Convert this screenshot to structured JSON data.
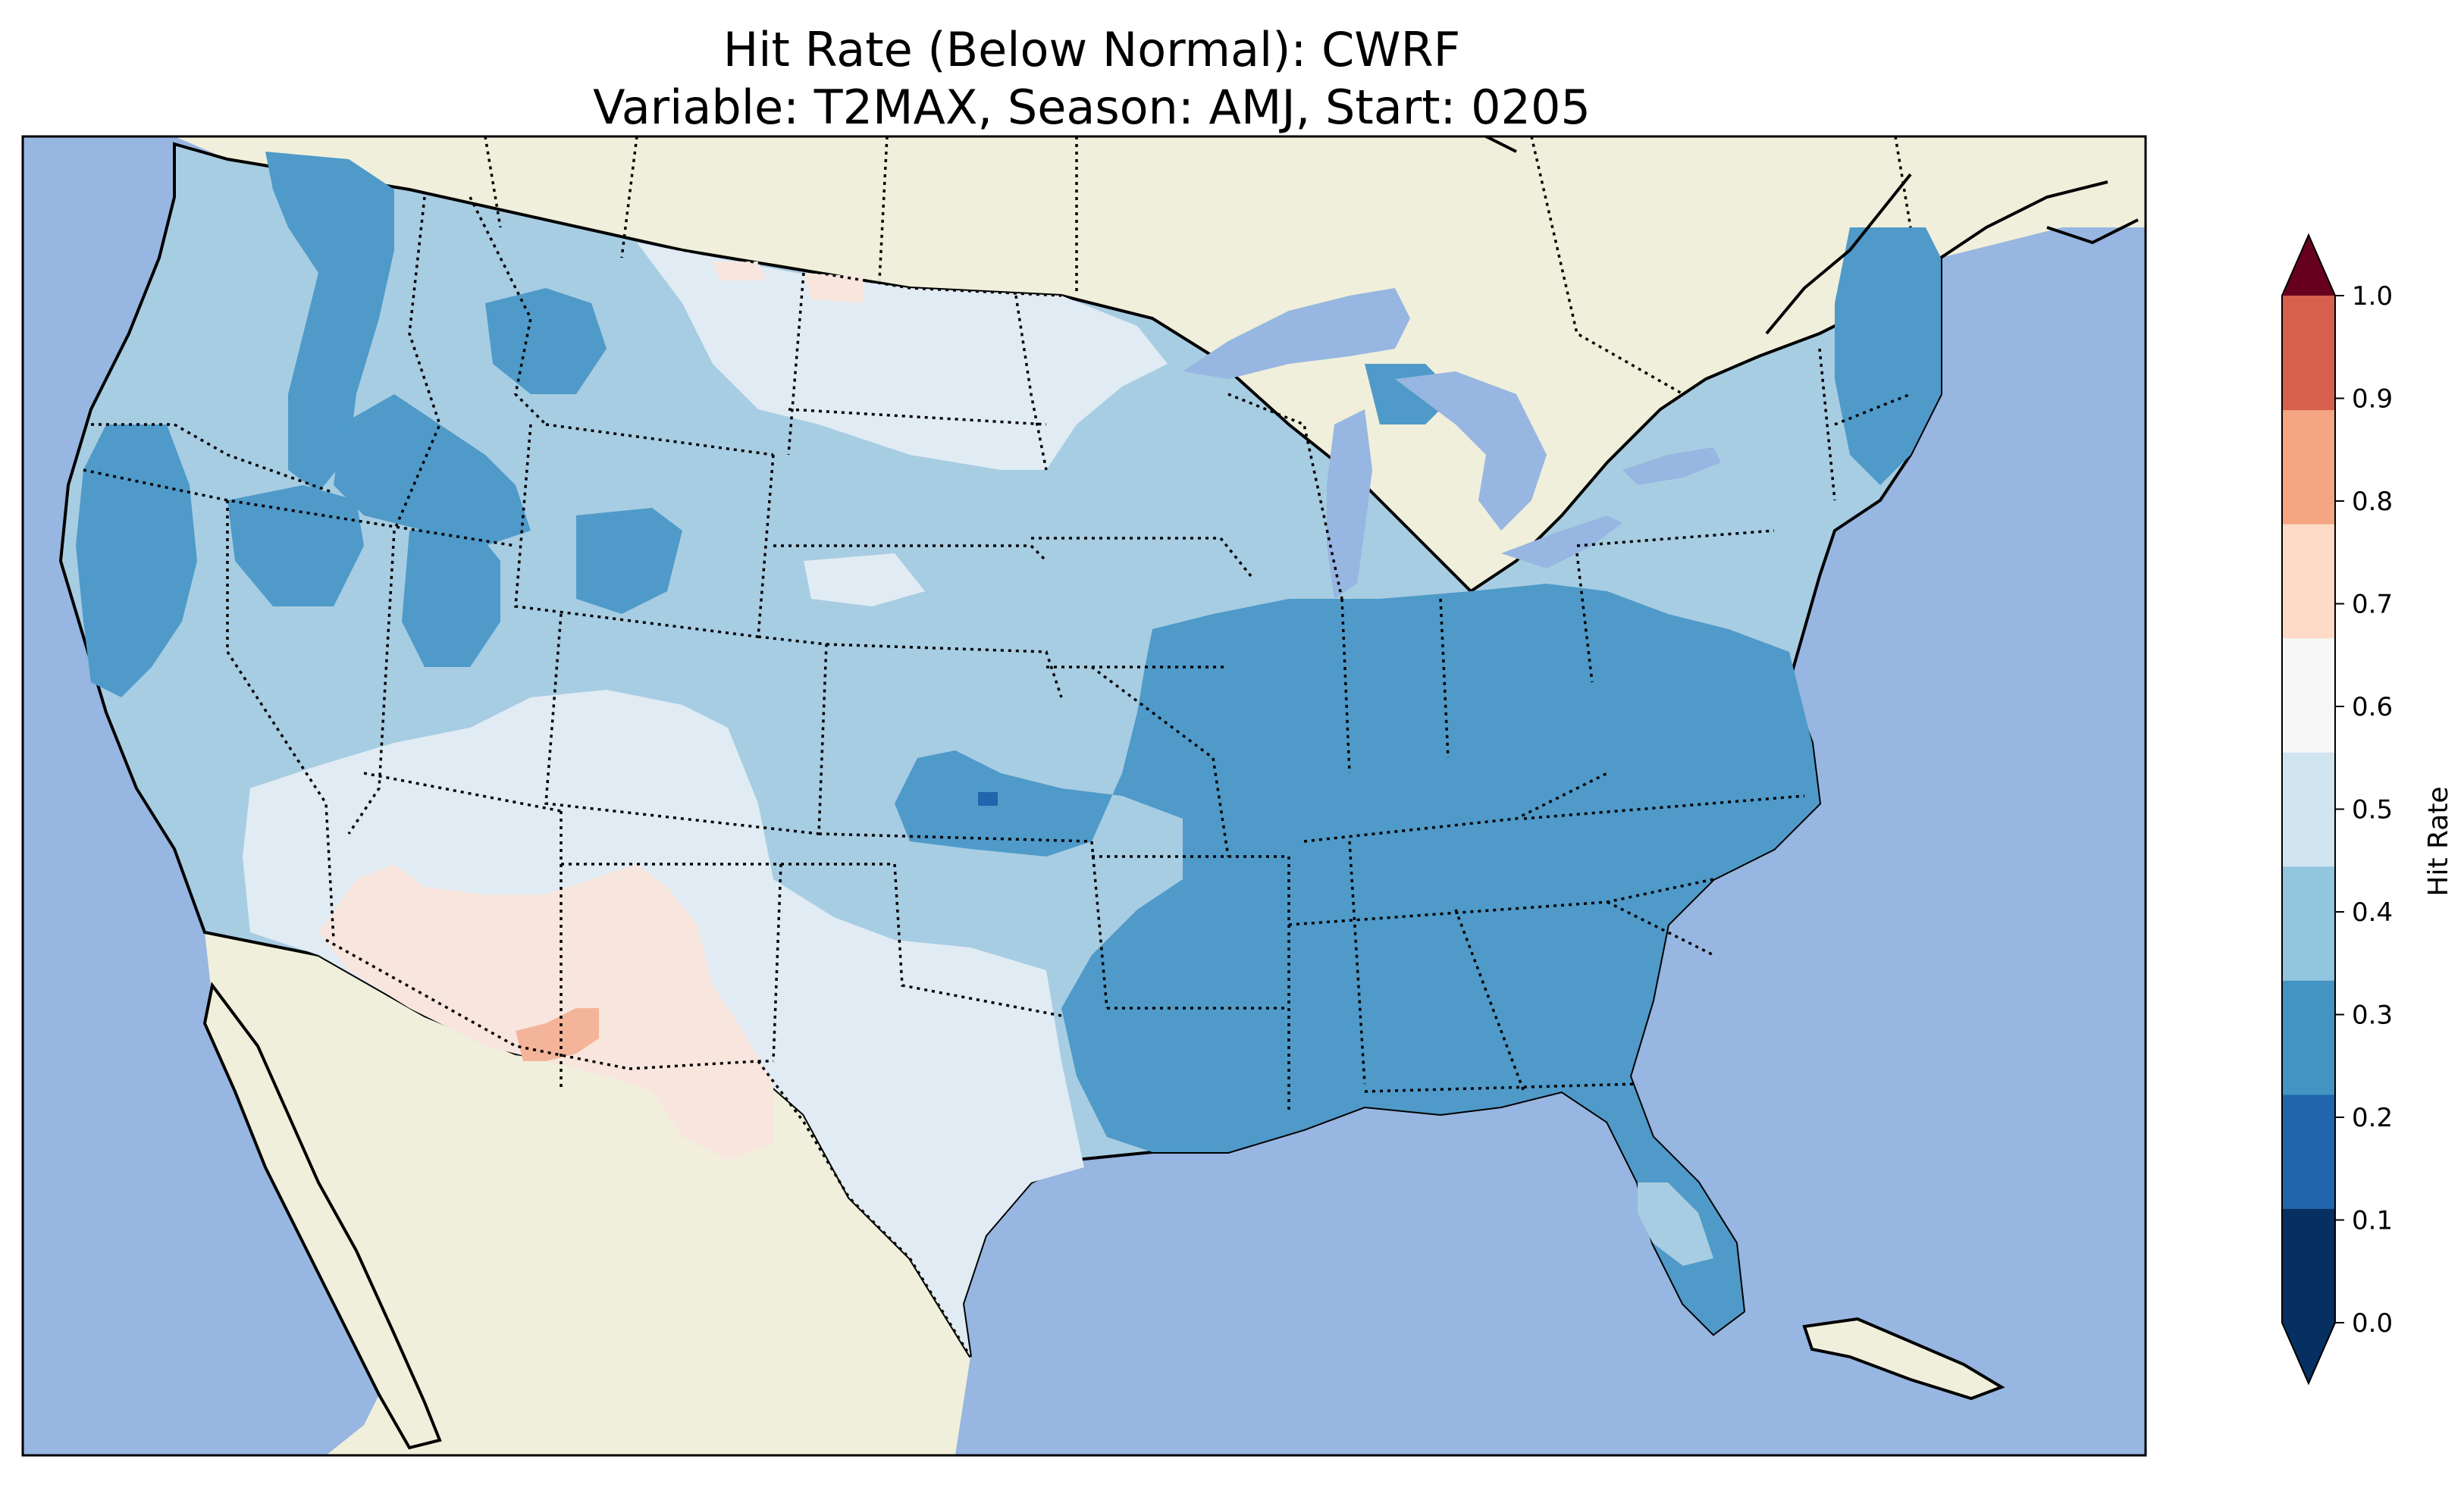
{
  "title": {
    "line1": "Hit Rate (Below Normal): CWRF",
    "line2": "Variable: T2MAX, Season: AMJ, Start: 0205"
  },
  "colorbar": {
    "label": "Hit Rate",
    "ticks": [
      "0.0",
      "0.1",
      "0.2",
      "0.3",
      "0.4",
      "0.5",
      "0.6",
      "0.7",
      "0.8",
      "0.9",
      "1.0"
    ],
    "colors": [
      "#053061",
      "#2166ac",
      "#4393c3",
      "#92c5de",
      "#d1e5f0",
      "#f7f7f7",
      "#fddbc7",
      "#f4a582",
      "#d6604d",
      "#b2182b",
      "#67001f"
    ],
    "extend": "both"
  },
  "map_colors": {
    "ocean": "#97b6e1",
    "land": "#efefdb",
    "lakes": "#97b6e1",
    "class_0.2_0.3": "#4f9ac9",
    "class_0.3_0.4": "#a7cde3",
    "class_0.4_0.5": "#e1ebf3",
    "class_0.5_0.6": "#f8e6de",
    "class_0.6_0.7": "#f4b49a",
    "class_0.1_0.2": "#2166ac"
  },
  "map": {
    "projection": "Lambert conformal",
    "region": "Contiguous United States"
  }
}
